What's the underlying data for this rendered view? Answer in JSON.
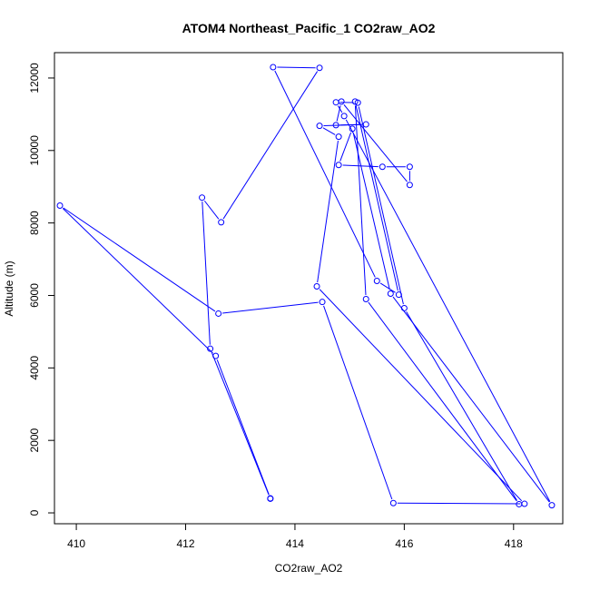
{
  "chart_data": {
    "type": "line",
    "title": "ATOM4 Northeast_Pacific_1 CO2raw_AO2",
    "xlabel": "CO2raw_AO2",
    "ylabel": "Altitude (m)",
    "xlim": [
      409.6,
      418.9
    ],
    "ylim": [
      -300,
      12700
    ],
    "x_ticks": [
      "410",
      "412",
      "414",
      "416",
      "418"
    ],
    "y_ticks": [
      "0",
      "2000",
      "4000",
      "6000",
      "8000",
      "10000",
      "12000"
    ],
    "grid": false,
    "color": "#0000ff",
    "points": [
      {
        "x": 413.55,
        "y": 390
      },
      {
        "x": 412.45,
        "y": 4530
      },
      {
        "x": 412.3,
        "y": 8700
      },
      {
        "x": 412.65,
        "y": 8020
      },
      {
        "x": 414.45,
        "y": 12280
      },
      {
        "x": 413.6,
        "y": 12300
      },
      {
        "x": 415.5,
        "y": 6400
      },
      {
        "x": 415.9,
        "y": 6020
      },
      {
        "x": 415.1,
        "y": 11350
      },
      {
        "x": 415.3,
        "y": 5900
      },
      {
        "x": 418.1,
        "y": 240
      },
      {
        "x": 416.0,
        "y": 5650
      },
      {
        "x": 415.15,
        "y": 11320
      },
      {
        "x": 414.75,
        "y": 11330
      },
      {
        "x": 414.9,
        "y": 10950
      },
      {
        "x": 418.7,
        "y": 210
      },
      {
        "x": 415.75,
        "y": 6050
      },
      {
        "x": 415.05,
        "y": 10600
      },
      {
        "x": 414.8,
        "y": 9600
      },
      {
        "x": 415.6,
        "y": 9550
      },
      {
        "x": 416.1,
        "y": 9550
      },
      {
        "x": 416.1,
        "y": 9050
      },
      {
        "x": 414.85,
        "y": 11350
      },
      {
        "x": 414.75,
        "y": 10700
      },
      {
        "x": 415.3,
        "y": 10720
      },
      {
        "x": 414.45,
        "y": 10680
      },
      {
        "x": 414.8,
        "y": 10380
      },
      {
        "x": 414.4,
        "y": 6250
      },
      {
        "x": 418.2,
        "y": 250
      },
      {
        "x": 415.8,
        "y": 270
      },
      {
        "x": 414.5,
        "y": 5820
      },
      {
        "x": 412.6,
        "y": 5500
      },
      {
        "x": 409.7,
        "y": 8480
      },
      {
        "x": 412.55,
        "y": 4330
      },
      {
        "x": 413.55,
        "y": 400
      }
    ]
  }
}
